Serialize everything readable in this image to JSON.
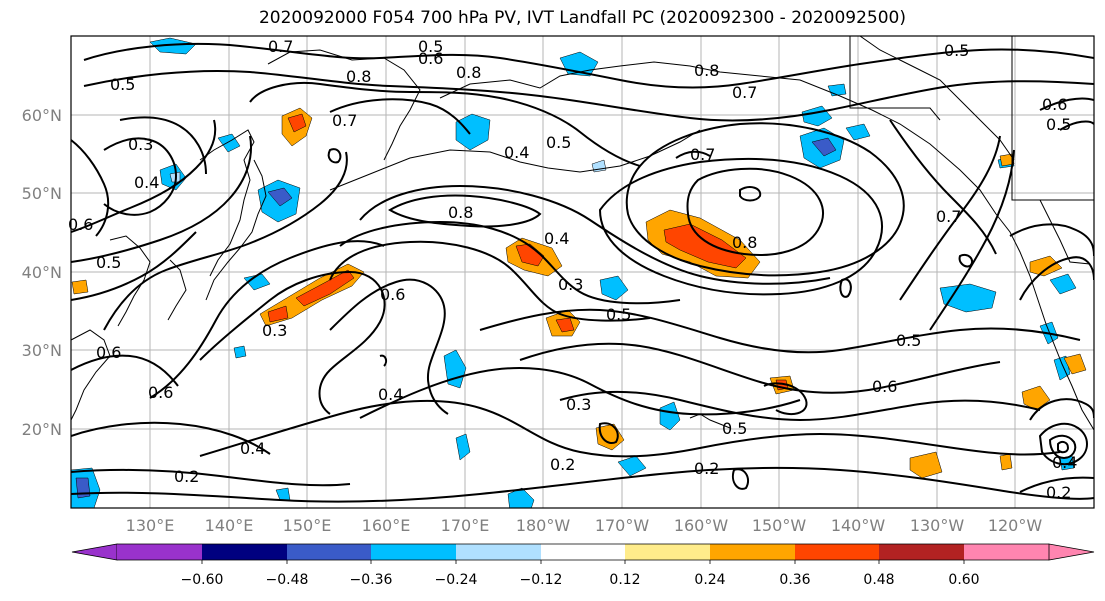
{
  "title": "2020092000 F054 700 hPa PV, IVT Landfall PC (2020092300 - 2020092500)",
  "axes": {
    "lon_ticks": [
      "130°E",
      "140°E",
      "150°E",
      "160°E",
      "170°E",
      "180°W",
      "170°W",
      "160°W",
      "150°W",
      "140°W",
      "130°W",
      "120°W"
    ],
    "lat_ticks": [
      "60°N",
      "50°N",
      "40°N",
      "30°N",
      "20°N"
    ]
  },
  "contour_labels": [
    "0.7",
    "0.5",
    "0.6",
    "0.8",
    "0.8",
    "0.7",
    "0.5",
    "0.7",
    "0.8",
    "0.7",
    "0.4",
    "0.5",
    "0.3",
    "0.4",
    "0.5",
    "0.8",
    "0.4",
    "0.8",
    "0.7",
    "0.3",
    "0.6",
    "0.5",
    "0.3",
    "0.6",
    "0.6",
    "0.4",
    "0.4",
    "0.5",
    "0.6",
    "0.3",
    "0.5",
    "0.2",
    "0.2",
    "0.2",
    "0.2",
    "0.6",
    "0.5",
    "0.4",
    "0.5",
    "0.6"
  ],
  "colorbar": {
    "colors": [
      "#9932cc",
      "#000080",
      "#3a5bc8",
      "#00bfff",
      "#b0e0ff",
      "#ffffff",
      "#ffec8b",
      "#ffa500",
      "#ff4500",
      "#b22222",
      "#ff85b0"
    ],
    "tick_labels": [
      "−0.60",
      "−0.48",
      "−0.36",
      "−0.24",
      "−0.12",
      "0.12",
      "0.24",
      "0.36",
      "0.48",
      "0.60"
    ]
  }
}
